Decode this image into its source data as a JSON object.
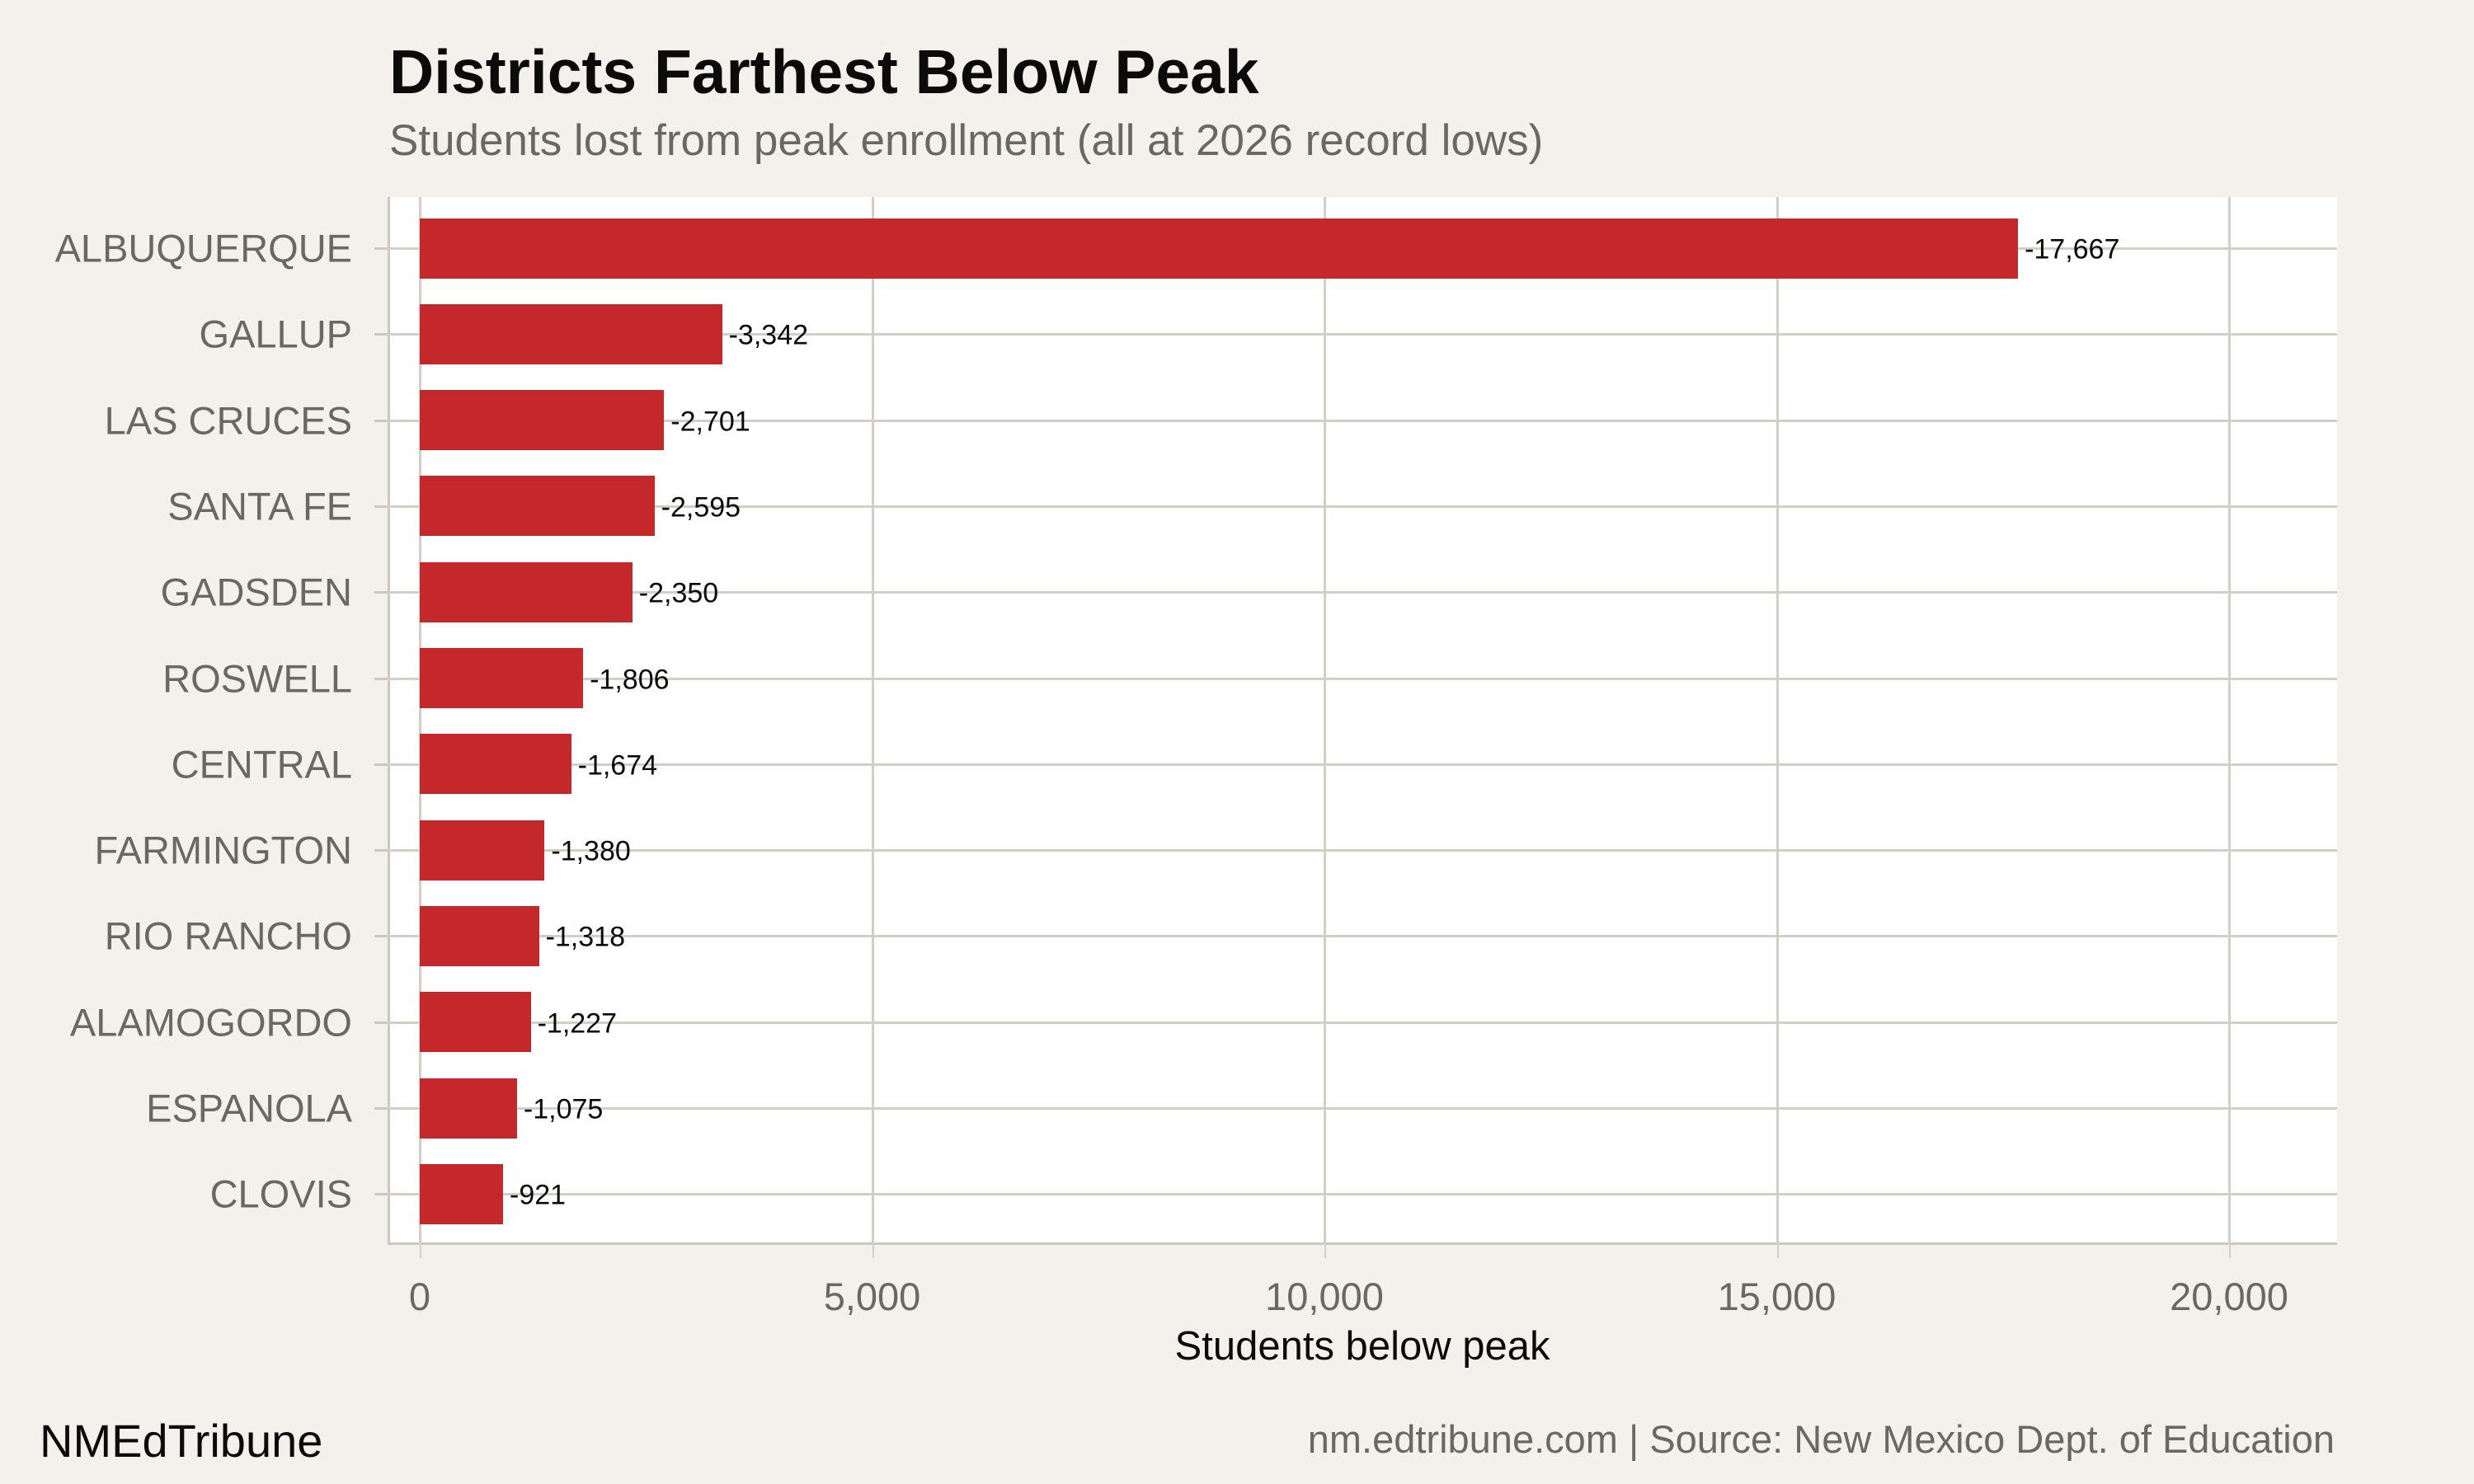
{
  "header": {
    "title": "Districts Farthest Below Peak",
    "subtitle": "Students lost from peak enrollment (all at 2026 record lows)"
  },
  "footer": {
    "brand": "NMEdTribune",
    "source": "nm.edtribune.com | Source: New Mexico Dept. of Education"
  },
  "colors": {
    "bar": "#c5282a",
    "background": "#f4f1ec",
    "panel": "#ffffff",
    "grid": "#d3cec6"
  },
  "chart_data": {
    "type": "bar",
    "orientation": "horizontal",
    "title": "Districts Farthest Below Peak",
    "subtitle": "Students lost from peak enrollment (all at 2026 record lows)",
    "xlabel": "Students below peak",
    "ylabel": "",
    "xlim": [
      0,
      21000
    ],
    "x_ticks": [
      0,
      5000,
      10000,
      15000,
      20000
    ],
    "x_tick_labels": [
      "0",
      "5,000",
      "10,000",
      "15,000",
      "20,000"
    ],
    "grid": true,
    "legend": "none",
    "categories": [
      "ALBUQUERQUE",
      "GALLUP",
      "LAS CRUCES",
      "SANTA FE",
      "GADSDEN",
      "ROSWELL",
      "CENTRAL",
      "FARMINGTON",
      "RIO RANCHO",
      "ALAMOGORDO",
      "ESPANOLA",
      "CLOVIS"
    ],
    "values": [
      17667,
      3342,
      2701,
      2595,
      2350,
      1806,
      1674,
      1380,
      1318,
      1227,
      1075,
      921
    ],
    "data_labels": [
      "-17,667",
      "-3,342",
      "-2,701",
      "-2,595",
      "-2,350",
      "-1,806",
      "-1,674",
      "-1,380",
      "-1,318",
      "-1,227",
      "-1,075",
      "-921"
    ]
  }
}
